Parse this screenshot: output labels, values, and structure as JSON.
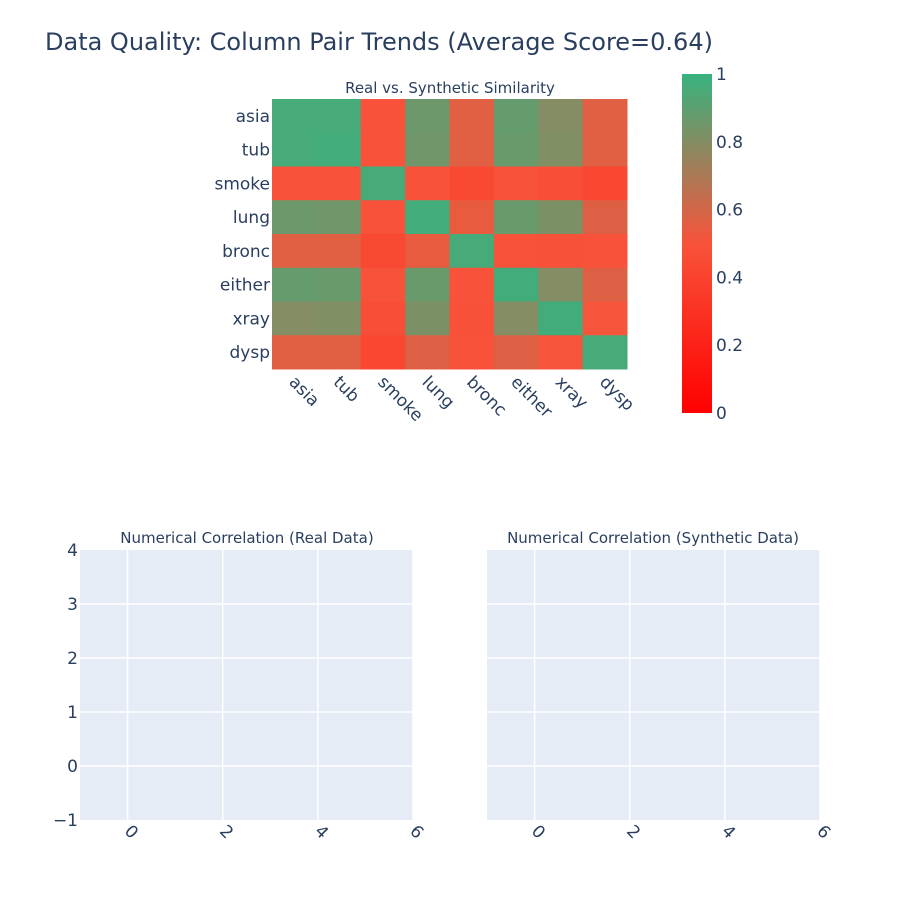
{
  "title": "Data Quality: Column Pair Trends (Average Score=0.64)",
  "colors": {
    "text": "#2a3f5f",
    "plot_bg": "#e5ecf6",
    "grid": "#ffffff",
    "scale_low": "#ff0000",
    "scale_mid": "#f8533a",
    "scale_high": "#36b37e"
  },
  "chart_data": [
    {
      "type": "heatmap",
      "title": "Real vs. Synthetic Similarity",
      "x": [
        "asia",
        "tub",
        "smoke",
        "lung",
        "bronc",
        "either",
        "xray",
        "dysp"
      ],
      "y": [
        "asia",
        "tub",
        "smoke",
        "lung",
        "bronc",
        "either",
        "xray",
        "dysp"
      ],
      "z": [
        [
          0.96,
          0.96,
          0.5,
          0.86,
          0.56,
          0.88,
          0.8,
          0.56
        ],
        [
          0.96,
          0.97,
          0.5,
          0.85,
          0.56,
          0.87,
          0.81,
          0.56
        ],
        [
          0.5,
          0.5,
          0.96,
          0.5,
          0.44,
          0.5,
          0.47,
          0.43
        ],
        [
          0.86,
          0.85,
          0.5,
          0.97,
          0.54,
          0.87,
          0.82,
          0.57
        ],
        [
          0.56,
          0.56,
          0.44,
          0.54,
          0.96,
          0.5,
          0.49,
          0.5
        ],
        [
          0.88,
          0.87,
          0.5,
          0.87,
          0.5,
          0.97,
          0.8,
          0.57
        ],
        [
          0.8,
          0.81,
          0.47,
          0.82,
          0.49,
          0.8,
          0.97,
          0.51
        ],
        [
          0.56,
          0.56,
          0.43,
          0.57,
          0.5,
          0.57,
          0.51,
          0.96
        ]
      ],
      "colorscale": {
        "min": 0,
        "max": 1,
        "ticks": [
          0,
          0.2,
          0.4,
          0.6,
          0.8,
          1
        ],
        "tick_labels": [
          "0",
          "0.2",
          "0.4",
          "0.6",
          "0.8",
          "1"
        ]
      }
    },
    {
      "type": "heatmap",
      "title": "Numerical Correlation (Real Data)",
      "xlim": [
        -1,
        6
      ],
      "ylim": [
        -1,
        4
      ],
      "x_ticks": [
        "0",
        "2",
        "4",
        "6"
      ],
      "y_ticks": [
        "−1",
        "0",
        "1",
        "2",
        "3",
        "4"
      ],
      "grid": true,
      "values": []
    },
    {
      "type": "heatmap",
      "title": "Numerical Correlation (Synthetic Data)",
      "xlim": [
        -1,
        6
      ],
      "ylim": [
        -1,
        4
      ],
      "x_ticks": [
        "0",
        "2",
        "4",
        "6"
      ],
      "grid": true,
      "values": []
    }
  ]
}
